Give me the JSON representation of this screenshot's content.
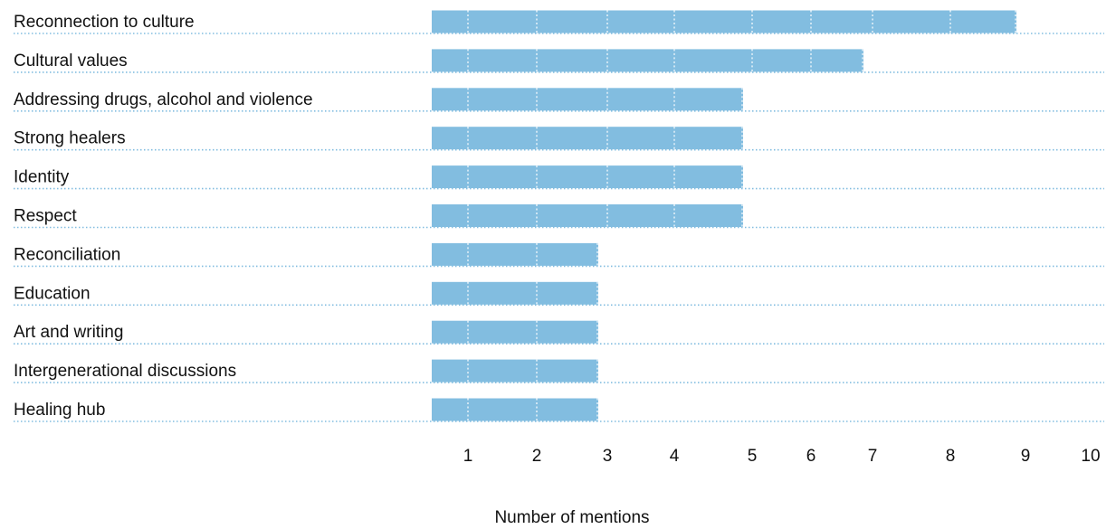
{
  "chart_data": {
    "type": "bar",
    "orientation": "horizontal",
    "title": "",
    "xlabel": "Number of mentions",
    "ylabel": "",
    "categories": [
      "Reconnection to culture",
      "Cultural values",
      "Addressing drugs, alcohol and violence",
      "Strong healers",
      "Identity",
      "Respect",
      "Reconciliation",
      "Education",
      "Art and writing",
      "Intergenerational discussions",
      "Healing hub"
    ],
    "values": [
      9,
      7,
      5,
      5,
      5,
      5,
      3,
      3,
      3,
      3,
      3
    ],
    "x_ticks": [
      "1",
      "2",
      "3",
      "4",
      "5",
      "6",
      "7",
      "8",
      "9",
      "10"
    ],
    "xlim": [
      0,
      10
    ],
    "grid": true,
    "legend": "none",
    "colors": {
      "bar": "#82bde0",
      "row_rule": "#82bde0",
      "grid_on_bar": "#ffffff",
      "text": "#111111"
    }
  }
}
